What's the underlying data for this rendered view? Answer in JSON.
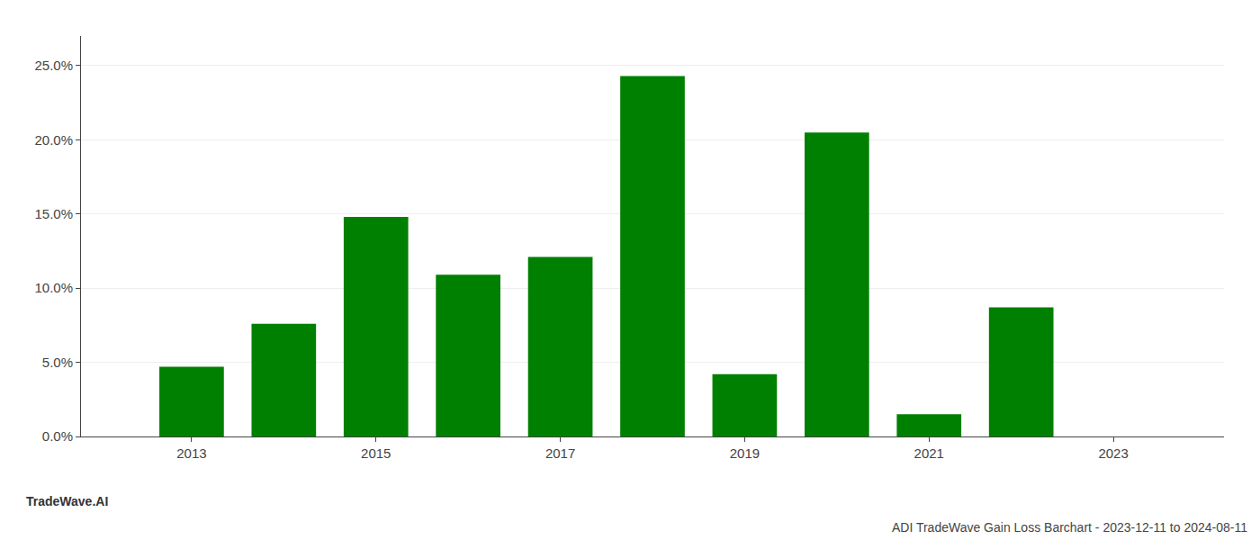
{
  "chart_data": {
    "type": "bar",
    "title": "ADI TradeWave Gain Loss Barchart - 2023-12-11 to 2024-08-11",
    "annotations": [
      "TradeWave.AI"
    ],
    "x": [
      2013,
      2014,
      2015,
      2016,
      2017,
      2018,
      2019,
      2020,
      2021,
      2022
    ],
    "values": [
      0.047,
      0.076,
      0.148,
      0.109,
      0.121,
      0.243,
      0.042,
      0.205,
      0.015,
      0.087
    ],
    "color": "#008000",
    "xlim": [
      2011.8,
      2024.2
    ],
    "xticks": [
      2013,
      2015,
      2017,
      2019,
      2021,
      2023
    ],
    "ylim": [
      0,
      0.27
    ],
    "yticks": [
      {
        "value": 0.0,
        "label": "0.0%"
      },
      {
        "value": 0.05,
        "label": "5.0%"
      },
      {
        "value": 0.1,
        "label": "10.0%"
      },
      {
        "value": 0.15,
        "label": "15.0%"
      },
      {
        "value": 0.2,
        "label": "20.0%"
      },
      {
        "value": 0.25,
        "label": "25.0%"
      }
    ],
    "grid": true
  }
}
